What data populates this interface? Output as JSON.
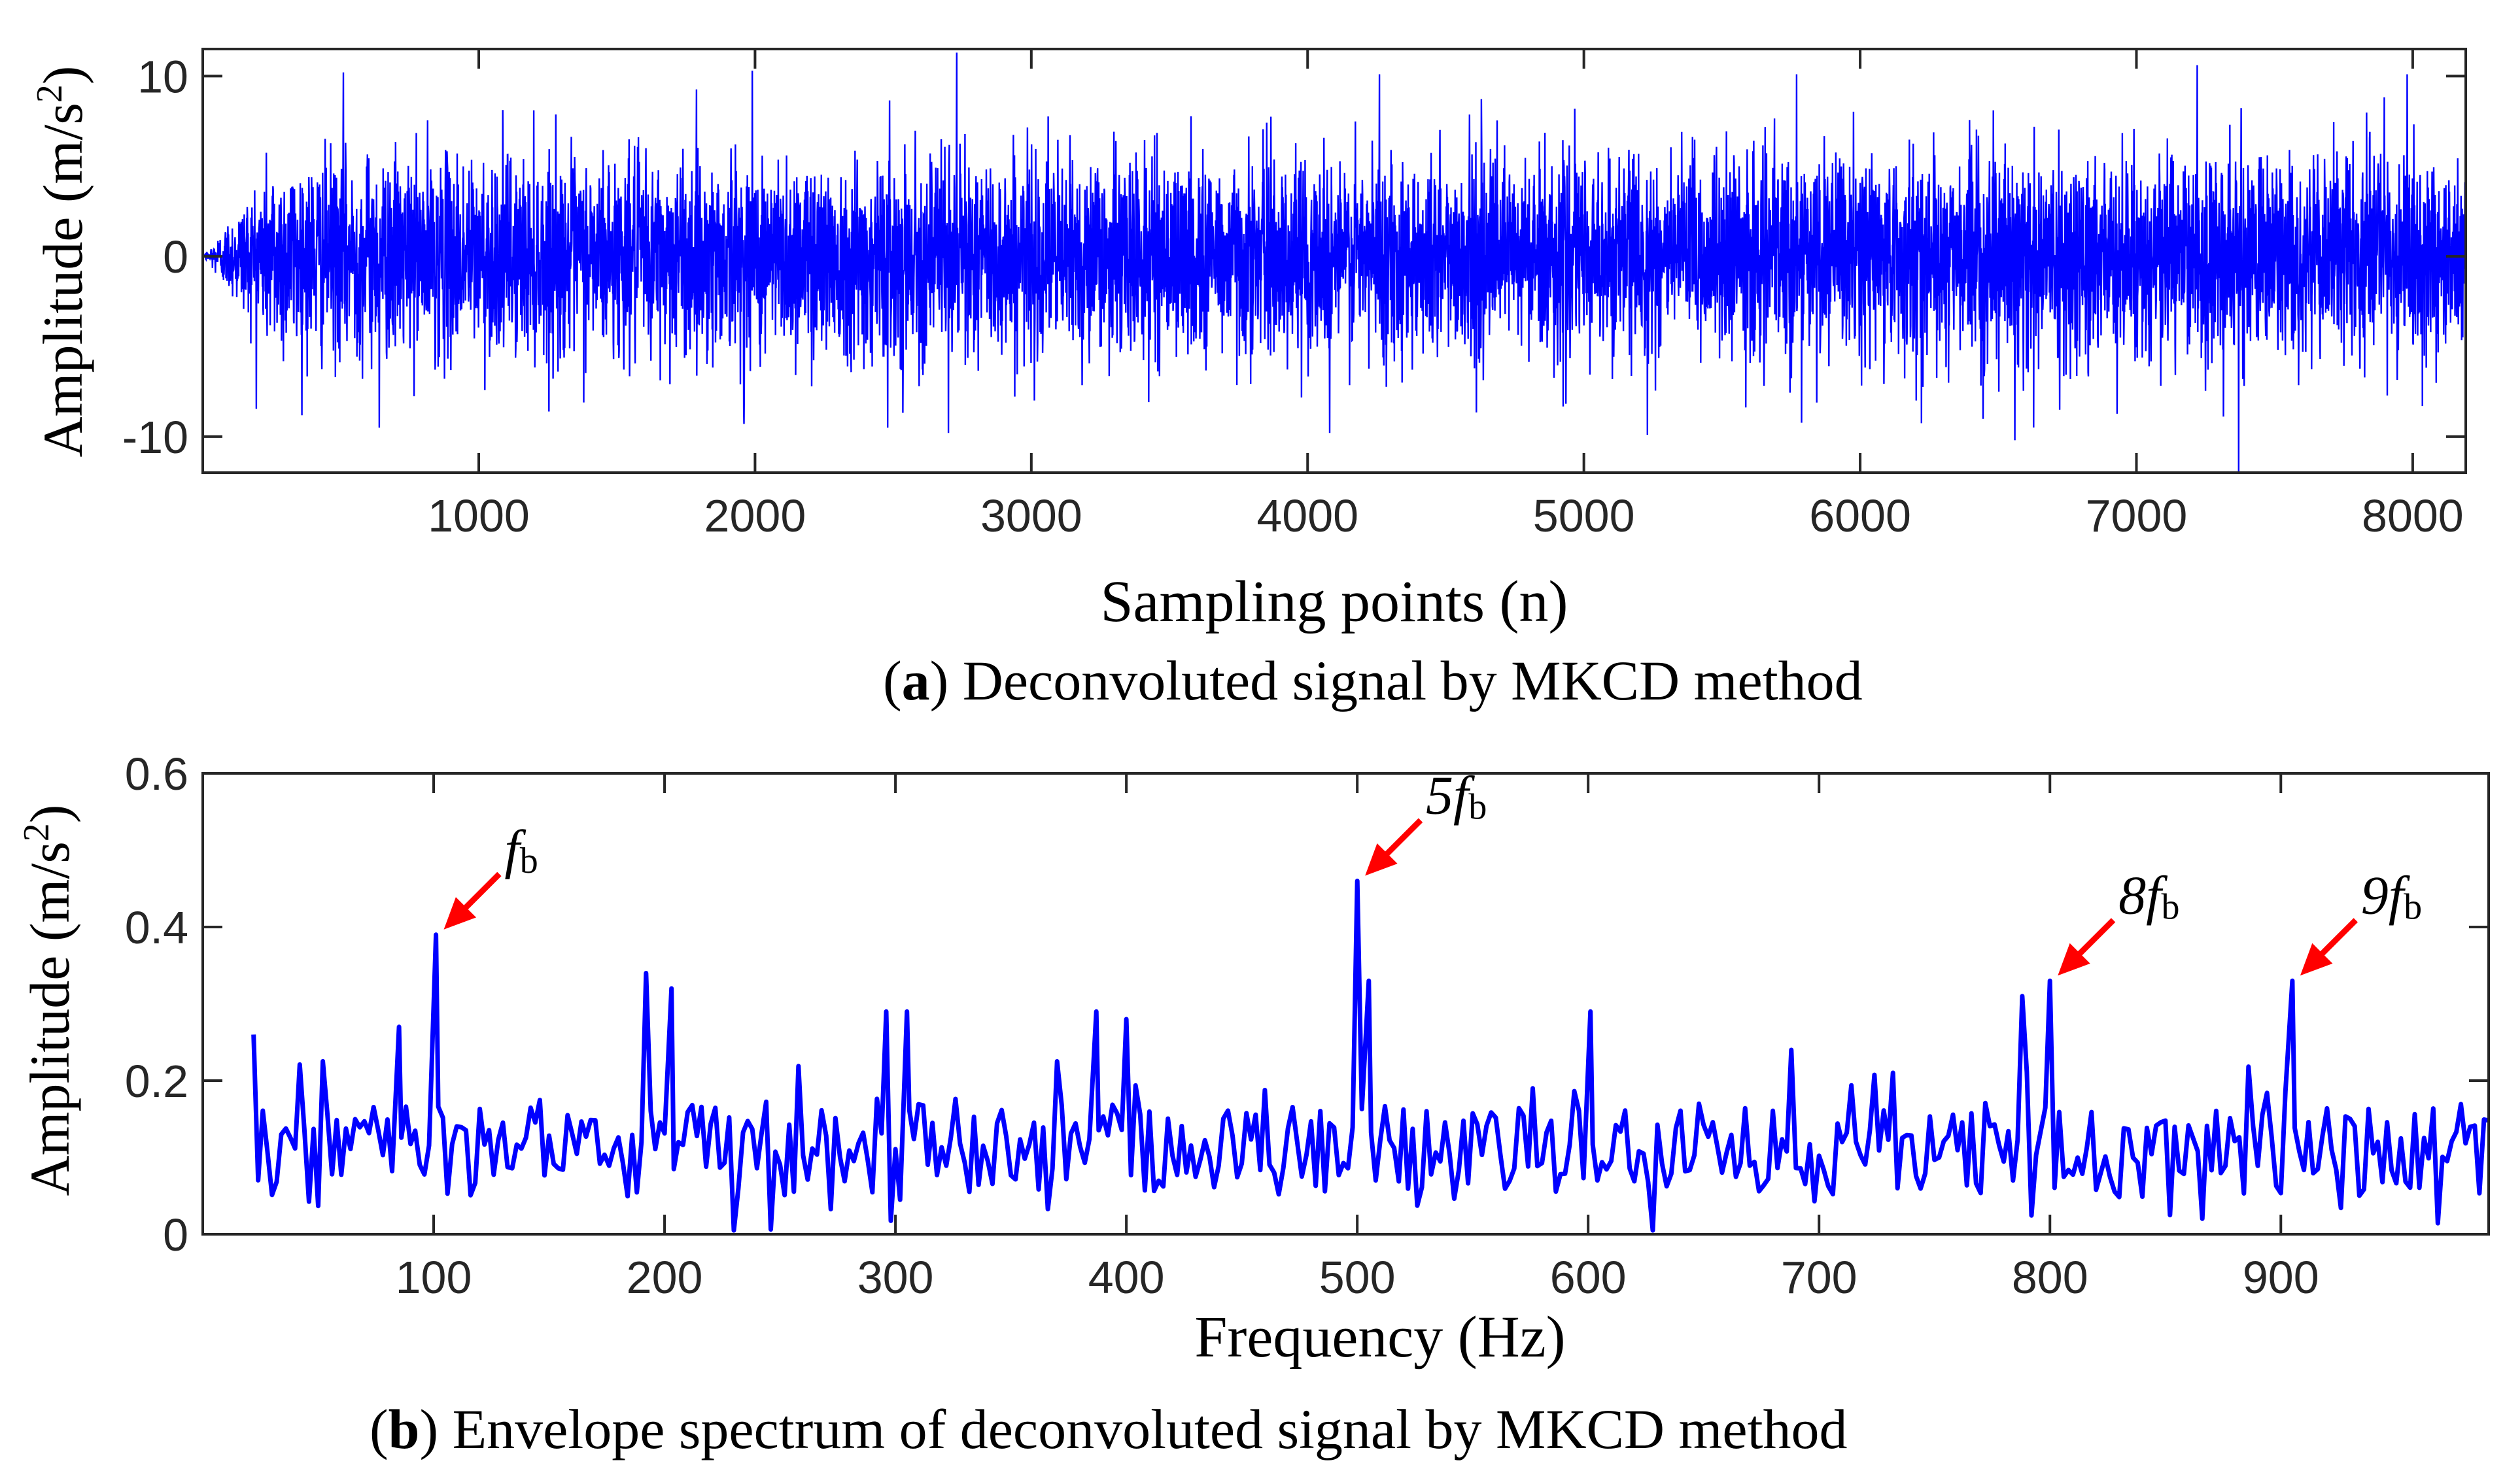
{
  "chart_data": [
    {
      "id": "a",
      "type": "line",
      "caption_letter": "a",
      "caption_text": ") Deconvoluted signal by MKCD method",
      "xlabel": "Sampling points (n)",
      "ylabel": "Amplitude (m/s",
      "ylabel_sup": "2",
      "ylabel_end": ")",
      "xlim": [
        1,
        8192
      ],
      "ylim": [
        -12,
        11.5
      ],
      "xticks": [
        1000,
        2000,
        3000,
        4000,
        5000,
        6000,
        7000,
        8000
      ],
      "yticks": [
        -10,
        0,
        10
      ],
      "xtick_labels": [
        "1000",
        "2000",
        "3000",
        "4000",
        "5000",
        "6000",
        "7000",
        "8000"
      ],
      "ytick_labels": [
        "-10",
        "0",
        "10"
      ],
      "line_color": "#0000ff",
      "series_length": 8192,
      "envelope_note_amplitude": 10,
      "notable_spikes": [
        {
          "x": 510,
          "y": 10.2
        },
        {
          "x": 640,
          "y": -9.5
        },
        {
          "x": 1960,
          "y": -9.3
        },
        {
          "x": 1990,
          "y": 10.3
        },
        {
          "x": 2480,
          "y": -9.5
        },
        {
          "x": 2700,
          "y": -9.8
        },
        {
          "x": 2730,
          "y": 11.3
        },
        {
          "x": 4080,
          "y": -9.8
        },
        {
          "x": 4260,
          "y": 10.1
        },
        {
          "x": 5230,
          "y": -9.9
        },
        {
          "x": 5770,
          "y": 10.1
        },
        {
          "x": 6560,
          "y": -10.2
        },
        {
          "x": 7220,
          "y": 10.6
        },
        {
          "x": 7370,
          "y": -12.0
        },
        {
          "x": 7980,
          "y": 10.1
        }
      ]
    },
    {
      "id": "b",
      "type": "line",
      "caption_letter": "b",
      "caption_text": ") Envelope spectrum of deconvoluted signal by MKCD method",
      "xlabel": "Frequency (Hz)",
      "ylabel": "Amplitude (m/s",
      "ylabel_sup": "2",
      "ylabel_end": ")",
      "xlim": [
        0,
        990
      ],
      "ylim": [
        0,
        0.6
      ],
      "xticks": [
        100,
        200,
        300,
        400,
        500,
        600,
        700,
        800,
        900
      ],
      "yticks": [
        0,
        0.2,
        0.4,
        0.6
      ],
      "xtick_labels": [
        "100",
        "200",
        "300",
        "400",
        "500",
        "600",
        "700",
        "800",
        "900"
      ],
      "ytick_labels": [
        "0",
        "0.2",
        "0.4",
        "0.6"
      ],
      "line_color": "#0000ff",
      "peaks": [
        {
          "x": 22,
          "y": 0.26
        },
        {
          "x": 85,
          "y": 0.27
        },
        {
          "x": 101,
          "y": 0.39
        },
        {
          "x": 192,
          "y": 0.34
        },
        {
          "x": 203,
          "y": 0.32
        },
        {
          "x": 296,
          "y": 0.29
        },
        {
          "x": 305,
          "y": 0.29
        },
        {
          "x": 387,
          "y": 0.29
        },
        {
          "x": 400,
          "y": 0.28
        },
        {
          "x": 500,
          "y": 0.46
        },
        {
          "x": 505,
          "y": 0.33
        },
        {
          "x": 601,
          "y": 0.29
        },
        {
          "x": 788,
          "y": 0.31
        },
        {
          "x": 800,
          "y": 0.33
        },
        {
          "x": 905,
          "y": 0.33
        }
      ],
      "annotations": [
        {
          "prefix": "",
          "symbol": "f",
          "sub": "b",
          "x": 101,
          "y": 0.39
        },
        {
          "prefix": "5",
          "symbol": "f",
          "sub": "b",
          "x": 500,
          "y": 0.46
        },
        {
          "prefix": "8",
          "symbol": "f",
          "sub": "b",
          "x": 800,
          "y": 0.33
        },
        {
          "prefix": "9",
          "symbol": "f",
          "sub": "b",
          "x": 905,
          "y": 0.33
        }
      ],
      "arrow_color": "#ff0000"
    }
  ]
}
